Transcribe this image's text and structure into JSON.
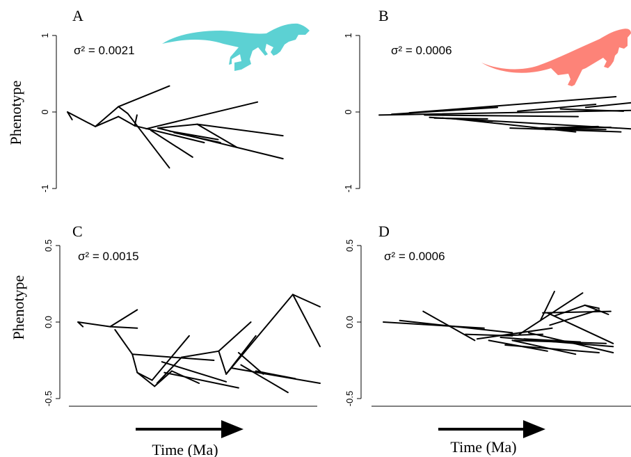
{
  "colors": {
    "dino_a": "#5cd1d3",
    "dino_b": "#fd8378",
    "lines": "#000000"
  },
  "axes": {
    "y_title": "Phenotype",
    "x_title": "Time (Ma)"
  },
  "chart_data": [
    {
      "type": "line",
      "panel": "A",
      "sigma_label": "σ² = 0.0021",
      "ylim": [
        -1,
        1
      ],
      "yticks": [
        "-1",
        "0",
        "1"
      ],
      "icon": "dino-a-silhouette",
      "segments": [
        [
          [
            0.0,
            0.0
          ],
          [
            0.02,
            -0.1
          ]
        ],
        [
          [
            0.0,
            0.0
          ],
          [
            0.12,
            -0.19
          ]
        ],
        [
          [
            0.12,
            -0.19
          ],
          [
            0.22,
            -0.06
          ]
        ],
        [
          [
            0.12,
            -0.19
          ],
          [
            0.22,
            0.07
          ]
        ],
        [
          [
            0.22,
            0.07
          ],
          [
            0.44,
            0.34
          ]
        ],
        [
          [
            0.22,
            0.07
          ],
          [
            0.26,
            -0.02
          ]
        ],
        [
          [
            0.22,
            -0.06
          ],
          [
            0.29,
            -0.18
          ]
        ],
        [
          [
            0.26,
            -0.02
          ],
          [
            0.44,
            -0.73
          ]
        ],
        [
          [
            0.29,
            -0.18
          ],
          [
            0.3,
            -0.04
          ]
        ],
        [
          [
            0.29,
            -0.18
          ],
          [
            0.59,
            -0.4
          ]
        ],
        [
          [
            0.34,
            -0.22
          ],
          [
            0.82,
            0.13
          ]
        ],
        [
          [
            0.36,
            -0.24
          ],
          [
            0.54,
            -0.59
          ]
        ],
        [
          [
            0.39,
            -0.21
          ],
          [
            0.56,
            -0.16
          ]
        ],
        [
          [
            0.56,
            -0.16
          ],
          [
            0.93,
            -0.31
          ]
        ],
        [
          [
            0.56,
            -0.16
          ],
          [
            0.73,
            -0.46
          ]
        ],
        [
          [
            0.39,
            -0.21
          ],
          [
            0.93,
            -0.61
          ]
        ],
        [
          [
            0.44,
            -0.25
          ],
          [
            0.65,
            -0.36
          ]
        ],
        [
          [
            0.46,
            -0.27
          ],
          [
            0.66,
            -0.4
          ]
        ]
      ]
    },
    {
      "type": "line",
      "panel": "B",
      "sigma_label": "σ² = 0.0006",
      "ylim": [
        -1,
        1
      ],
      "yticks": [
        "-1",
        "0",
        "1"
      ],
      "icon": "dino-b-silhouette",
      "segments": [
        [
          [
            0.0,
            -0.04
          ],
          [
            1.0,
            0.02
          ]
        ],
        [
          [
            0.05,
            -0.03
          ],
          [
            0.47,
            0.06
          ]
        ],
        [
          [
            0.12,
            -0.01
          ],
          [
            0.94,
            0.2
          ]
        ],
        [
          [
            0.18,
            -0.04
          ],
          [
            0.79,
            -0.06
          ]
        ],
        [
          [
            0.2,
            -0.07
          ],
          [
            0.45,
            -0.12
          ]
        ],
        [
          [
            0.22,
            -0.08
          ],
          [
            0.43,
            -0.09
          ]
        ],
        [
          [
            0.25,
            -0.08
          ],
          [
            1.0,
            -0.22
          ]
        ],
        [
          [
            0.3,
            -0.09
          ],
          [
            0.78,
            -0.26
          ]
        ],
        [
          [
            0.52,
            -0.21
          ],
          [
            0.96,
            -0.26
          ]
        ],
        [
          [
            0.62,
            -0.21
          ],
          [
            0.87,
            -0.19
          ]
        ],
        [
          [
            0.66,
            -0.23
          ],
          [
            0.9,
            -0.23
          ]
        ],
        [
          [
            0.7,
            -0.22
          ],
          [
            0.92,
            -0.2
          ]
        ],
        [
          [
            0.55,
            0.01
          ],
          [
            0.86,
            0.1
          ]
        ],
        [
          [
            0.72,
            0.04
          ],
          [
            0.97,
            0.01
          ]
        ],
        [
          [
            0.82,
            0.06
          ],
          [
            1.0,
            0.12
          ]
        ]
      ]
    },
    {
      "type": "line",
      "panel": "C",
      "sigma_label": "σ² = 0.0015",
      "ylim": [
        -0.5,
        0.5
      ],
      "yticks": [
        "-0.5",
        "0.0",
        "0.5"
      ],
      "segments": [
        [
          [
            0.02,
            0.0
          ],
          [
            0.04,
            -0.03
          ]
        ],
        [
          [
            0.02,
            0.0
          ],
          [
            0.15,
            -0.03
          ]
        ],
        [
          [
            0.15,
            -0.03
          ],
          [
            0.26,
            0.08
          ]
        ],
        [
          [
            0.15,
            -0.03
          ],
          [
            0.26,
            -0.04
          ]
        ],
        [
          [
            0.17,
            -0.05
          ],
          [
            0.24,
            -0.21
          ]
        ],
        [
          [
            0.24,
            -0.21
          ],
          [
            0.57,
            -0.25
          ]
        ],
        [
          [
            0.24,
            -0.21
          ],
          [
            0.26,
            -0.33
          ]
        ],
        [
          [
            0.26,
            -0.33
          ],
          [
            0.33,
            -0.42
          ]
        ],
        [
          [
            0.26,
            -0.33
          ],
          [
            0.32,
            -0.38
          ]
        ],
        [
          [
            0.32,
            -0.38
          ],
          [
            0.47,
            -0.09
          ]
        ],
        [
          [
            0.33,
            -0.42
          ],
          [
            0.4,
            -0.32
          ]
        ],
        [
          [
            0.34,
            -0.4
          ],
          [
            0.44,
            -0.23
          ]
        ],
        [
          [
            0.4,
            -0.32
          ],
          [
            0.51,
            -0.4
          ]
        ],
        [
          [
            0.36,
            -0.26
          ],
          [
            0.62,
            -0.39
          ]
        ],
        [
          [
            0.37,
            -0.33
          ],
          [
            0.67,
            -0.43
          ]
        ],
        [
          [
            0.44,
            -0.23
          ],
          [
            0.59,
            -0.19
          ]
        ],
        [
          [
            0.59,
            -0.19
          ],
          [
            0.72,
            0.0
          ]
        ],
        [
          [
            0.59,
            -0.19
          ],
          [
            0.62,
            -0.34
          ]
        ],
        [
          [
            0.62,
            -0.34
          ],
          [
            0.89,
            0.18
          ]
        ],
        [
          [
            0.89,
            0.18
          ],
          [
            1.0,
            0.1
          ]
        ],
        [
          [
            0.89,
            0.18
          ],
          [
            1.0,
            -0.16
          ]
        ],
        [
          [
            0.62,
            -0.34
          ],
          [
            0.74,
            -0.09
          ]
        ],
        [
          [
            0.67,
            -0.2
          ],
          [
            0.77,
            -0.34
          ]
        ],
        [
          [
            0.68,
            -0.28
          ],
          [
            0.87,
            -0.46
          ]
        ],
        [
          [
            0.64,
            -0.3
          ],
          [
            1.0,
            -0.4
          ]
        ],
        [
          [
            0.74,
            -0.32
          ],
          [
            0.9,
            -0.37
          ]
        ]
      ]
    },
    {
      "type": "line",
      "panel": "D",
      "sigma_label": "σ² = 0.0006",
      "ylim": [
        -0.5,
        0.5
      ],
      "yticks": [
        "-0.5",
        "0.0",
        "0.5"
      ],
      "segments": [
        [
          [
            0.0,
            0.0
          ],
          [
            0.43,
            -0.04
          ]
        ],
        [
          [
            0.07,
            0.01
          ],
          [
            0.55,
            -0.07
          ]
        ],
        [
          [
            0.17,
            0.07
          ],
          [
            0.39,
            -0.12
          ]
        ],
        [
          [
            0.35,
            -0.08
          ],
          [
            0.55,
            -0.09
          ]
        ],
        [
          [
            0.4,
            -0.11
          ],
          [
            0.72,
            -0.04
          ]
        ],
        [
          [
            0.45,
            -0.12
          ],
          [
            0.7,
            -0.19
          ]
        ],
        [
          [
            0.47,
            -0.09
          ],
          [
            0.68,
            -0.08
          ]
        ],
        [
          [
            0.5,
            -0.1
          ],
          [
            0.98,
            -0.16
          ]
        ],
        [
          [
            0.52,
            -0.15
          ],
          [
            0.92,
            -0.2
          ]
        ],
        [
          [
            0.55,
            -0.12
          ],
          [
            0.82,
            -0.21
          ]
        ],
        [
          [
            0.56,
            -0.12
          ],
          [
            0.95,
            -0.14
          ]
        ],
        [
          [
            0.6,
            -0.11
          ],
          [
            0.84,
            -0.13
          ]
        ],
        [
          [
            0.62,
            -0.07
          ],
          [
            0.98,
            -0.2
          ]
        ],
        [
          [
            0.58,
            -0.08
          ],
          [
            0.67,
            0.01
          ]
        ],
        [
          [
            0.67,
            0.01
          ],
          [
            0.73,
            0.2
          ]
        ],
        [
          [
            0.67,
            0.01
          ],
          [
            0.85,
            0.19
          ]
        ],
        [
          [
            0.68,
            0.06
          ],
          [
            0.97,
            0.07
          ]
        ],
        [
          [
            0.7,
            0.06
          ],
          [
            0.98,
            -0.14
          ]
        ],
        [
          [
            0.73,
            0.04
          ],
          [
            0.86,
            0.11
          ]
        ],
        [
          [
            0.86,
            0.11
          ],
          [
            0.96,
            0.05
          ]
        ],
        [
          [
            0.86,
            0.11
          ],
          [
            0.92,
            0.09
          ]
        ],
        [
          [
            0.71,
            -0.02
          ],
          [
            0.92,
            0.08
          ]
        ]
      ]
    }
  ]
}
